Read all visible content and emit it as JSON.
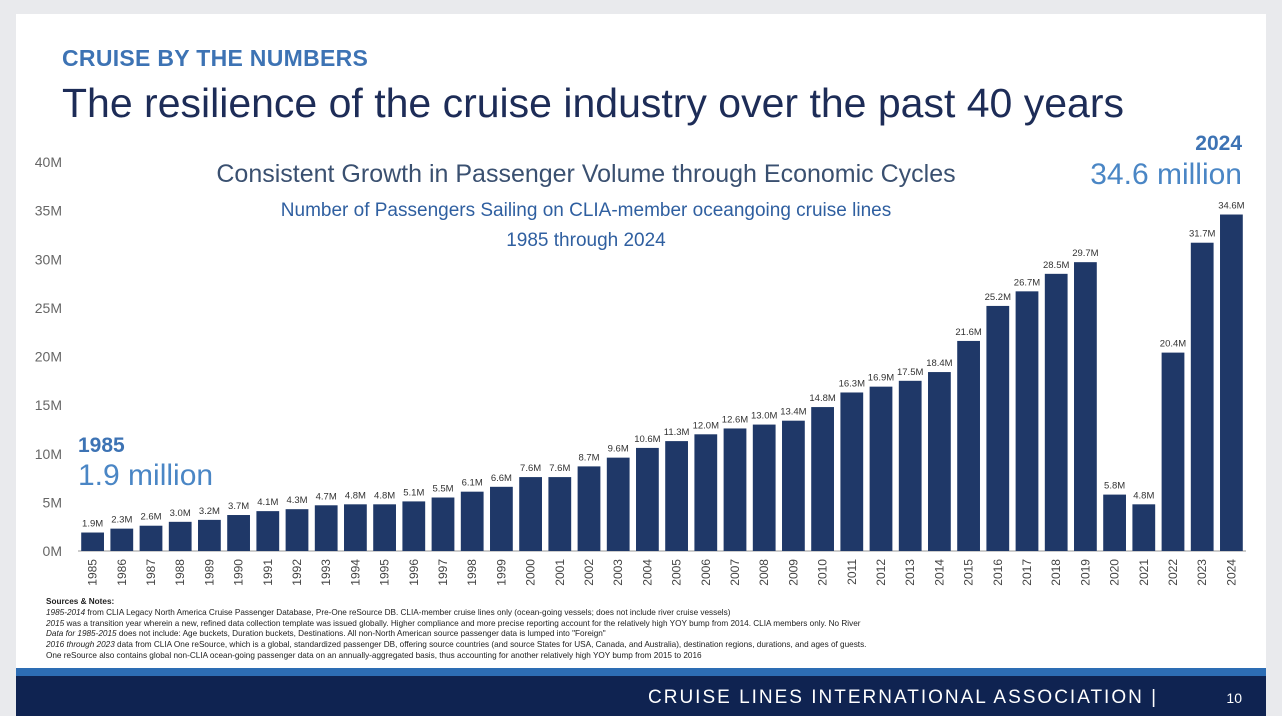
{
  "header": {
    "kicker": "CRUISE BY THE NUMBERS",
    "headline": "The resilience of the cruise industry over the past 40 years"
  },
  "callouts": {
    "start": {
      "year": "1985",
      "value": "1.9 million"
    },
    "end": {
      "year": "2024",
      "value": "34.6 million"
    }
  },
  "chart_data": {
    "type": "bar",
    "title": "Consistent Growth in Passenger Volume through Economic Cycles",
    "subtitle": "Number of Passengers Sailing on CLIA-member oceangoing cruise lines",
    "range_label": "1985 through 2024",
    "xlabel": "",
    "ylabel": "",
    "categories": [
      "1985",
      "1986",
      "1987",
      "1988",
      "1989",
      "1990",
      "1991",
      "1992",
      "1993",
      "1994",
      "1995",
      "1996",
      "1997",
      "1998",
      "1999",
      "2000",
      "2001",
      "2002",
      "2003",
      "2004",
      "2005",
      "2006",
      "2007",
      "2008",
      "2009",
      "2010",
      "2011",
      "2012",
      "2013",
      "2014",
      "2015",
      "2016",
      "2017",
      "2018",
      "2019",
      "2020",
      "2021",
      "2022",
      "2023",
      "2024"
    ],
    "values": [
      1.9,
      2.3,
      2.6,
      3.0,
      3.2,
      3.7,
      4.1,
      4.3,
      4.7,
      4.8,
      4.8,
      5.1,
      5.5,
      6.1,
      6.6,
      7.6,
      7.6,
      8.7,
      9.6,
      10.6,
      11.3,
      12.0,
      12.6,
      13.0,
      13.4,
      14.8,
      16.3,
      16.9,
      17.5,
      18.4,
      21.6,
      25.2,
      26.7,
      28.5,
      29.7,
      5.8,
      4.8,
      20.4,
      31.7,
      34.6
    ],
    "data_labels": [
      "1.9M",
      "2.3M",
      "2.6M",
      "3.0M",
      "3.2M",
      "3.7M",
      "4.1M",
      "4.3M",
      "4.7M",
      "4.8M",
      "4.8M",
      "5.1M",
      "5.5M",
      "6.1M",
      "6.6M",
      "7.6M",
      "7.6M",
      "8.7M",
      "9.6M",
      "10.6M",
      "11.3M",
      "12.0M",
      "12.6M",
      "13.0M",
      "13.4M",
      "14.8M",
      "16.3M",
      "16.9M",
      "17.5M",
      "18.4M",
      "21.6M",
      "25.2M",
      "26.7M",
      "28.5M",
      "29.7M",
      "5.8M",
      "4.8M",
      "20.4M",
      "31.7M",
      "34.6M"
    ],
    "y_ticks": [
      0,
      5,
      10,
      15,
      20,
      25,
      30,
      35,
      40
    ],
    "y_tick_labels": [
      "0M",
      "5M",
      "10M",
      "15M",
      "20M",
      "25M",
      "30M",
      "35M",
      "40M"
    ],
    "ylim": [
      0,
      40
    ],
    "grid": false,
    "bar_color": "#1f3868"
  },
  "notes": {
    "heading": "Sources & Notes:",
    "lines": [
      {
        "lead": "1985-2014",
        "text": " from CLIA Legacy North America Cruise Passenger Database, Pre-One reSource DB. CLIA-member cruise lines only (ocean-going vessels; does not include river cruise vessels)"
      },
      {
        "lead": "2015",
        "text": " was a transition year wherein a new, refined data collection template was issued globally. Higher compliance and more precise reporting account for the relatively high YOY bump from 2014. CLIA members only. No River"
      },
      {
        "lead": "Data for 1985-2015",
        "text": " does not include: Age buckets, Duration buckets, Destinations. All non-North American source passenger data is lumped into \"Foreign\""
      },
      {
        "lead": "2016 through 2023",
        "text": " data from CLIA One reSource, which is a global, standardized passenger DB, offering source countries (and source States for USA, Canada, and Australia), destination regions, durations, and ages of guests."
      },
      {
        "lead": "",
        "text": "One reSource also contains global non-CLIA ocean-going passenger data on an annually-aggregated basis, thus accounting for another relatively high YOY bump from 2015 to 2016"
      }
    ]
  },
  "footer": {
    "org": "CRUISE LINES INTERNATIONAL ASSOCIATION |",
    "page_number": "10"
  },
  "colors": {
    "accent": "#3d73b4",
    "headline": "#1d2c57",
    "footer_band": "#0f2351",
    "footer_stripe": "#2d6db4"
  }
}
